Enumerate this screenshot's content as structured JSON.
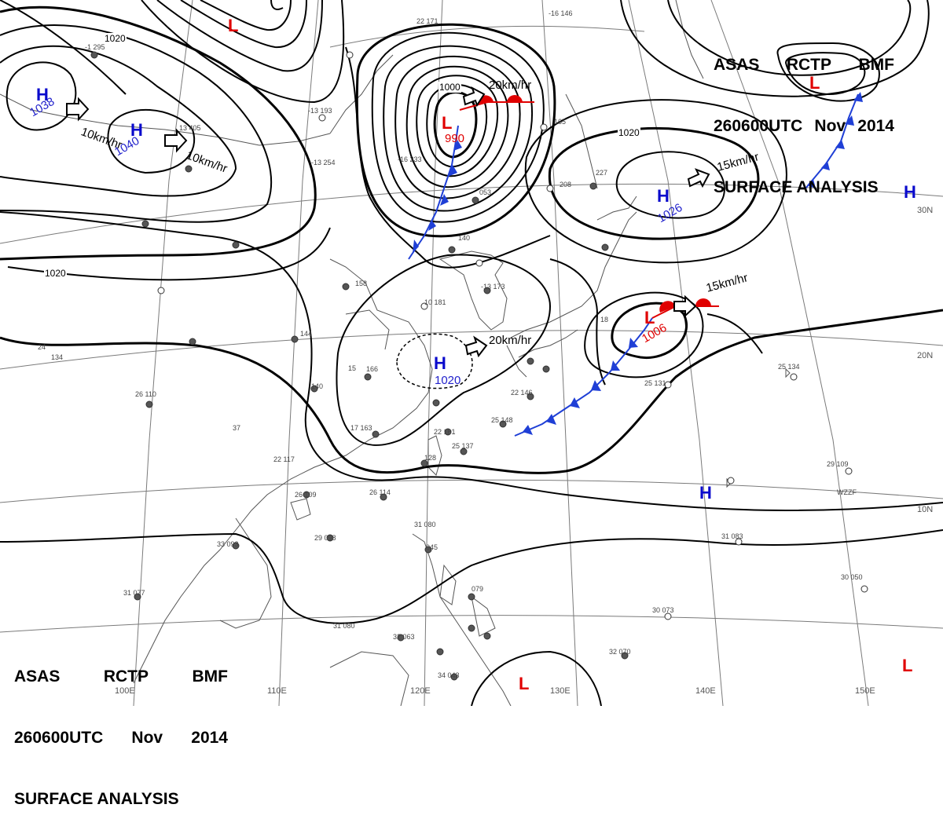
{
  "header": {
    "line1": [
      "ASAS",
      "RCTP",
      "BMF"
    ],
    "line2": [
      "260600UTC",
      "Nov",
      "2014"
    ],
    "line3": "SURFACE ANALYSIS"
  },
  "pressure_systems": [
    {
      "type": "H",
      "value": "1038",
      "motion": ""
    },
    {
      "type": "H",
      "value": "1040",
      "motion": "10km/hr"
    },
    {
      "type": "L",
      "value": "990",
      "motion": "20km/hr"
    },
    {
      "type": "H",
      "value": "1026",
      "motion": "15km/hr"
    },
    {
      "type": "H",
      "value": "1020",
      "motion": "20km/hr"
    },
    {
      "type": "L",
      "value": "1006",
      "motion": "15km/hr"
    },
    {
      "type": "L",
      "value": "",
      "motion": ""
    },
    {
      "type": "L",
      "value": "",
      "motion": ""
    },
    {
      "type": "L",
      "value": "",
      "motion": ""
    },
    {
      "type": "L",
      "value": "",
      "motion": ""
    },
    {
      "type": "H",
      "value": "",
      "motion": ""
    },
    {
      "type": "H",
      "value": "",
      "motion": ""
    }
  ],
  "extra_motion_label": "10km/hr",
  "isobar_labels": [
    "1020",
    "1020",
    "1000",
    "1020"
  ],
  "longitude_labels": [
    "100E",
    "110E",
    "120E",
    "130E",
    "140E",
    "150E"
  ],
  "latitude_labels": [
    "30N",
    "20N",
    "10N"
  ],
  "station_samples": [
    "22 171",
    "-16 146",
    "-1 295",
    "13 405",
    "-13 193",
    "-13 254",
    "-16 233",
    "053",
    "140",
    "10 181",
    "-13 173",
    "144",
    "158",
    "166",
    "140",
    "17 163",
    "22 161",
    "128",
    "25 137",
    "25 148",
    "22 146",
    "26 114",
    "22 117",
    "26 109",
    "29 098",
    "33 093",
    "31 077",
    "31 080",
    "32 063",
    "31 080",
    "045",
    "079",
    "25 131",
    "25 134",
    "29 109",
    "31 083",
    "30 050",
    "30 073",
    "32 070",
    "34 043",
    "227",
    "208",
    "165",
    "18",
    "15",
    "26 110",
    "37",
    "24",
    "134",
    "WZZF"
  ],
  "colors": {
    "high": "#0a0acc",
    "low": "#e00000",
    "cold_front": "#1f3fd6",
    "warm_front": "#e00000",
    "isobar": "#000000",
    "coast": "#555555",
    "grid": "#666666"
  }
}
